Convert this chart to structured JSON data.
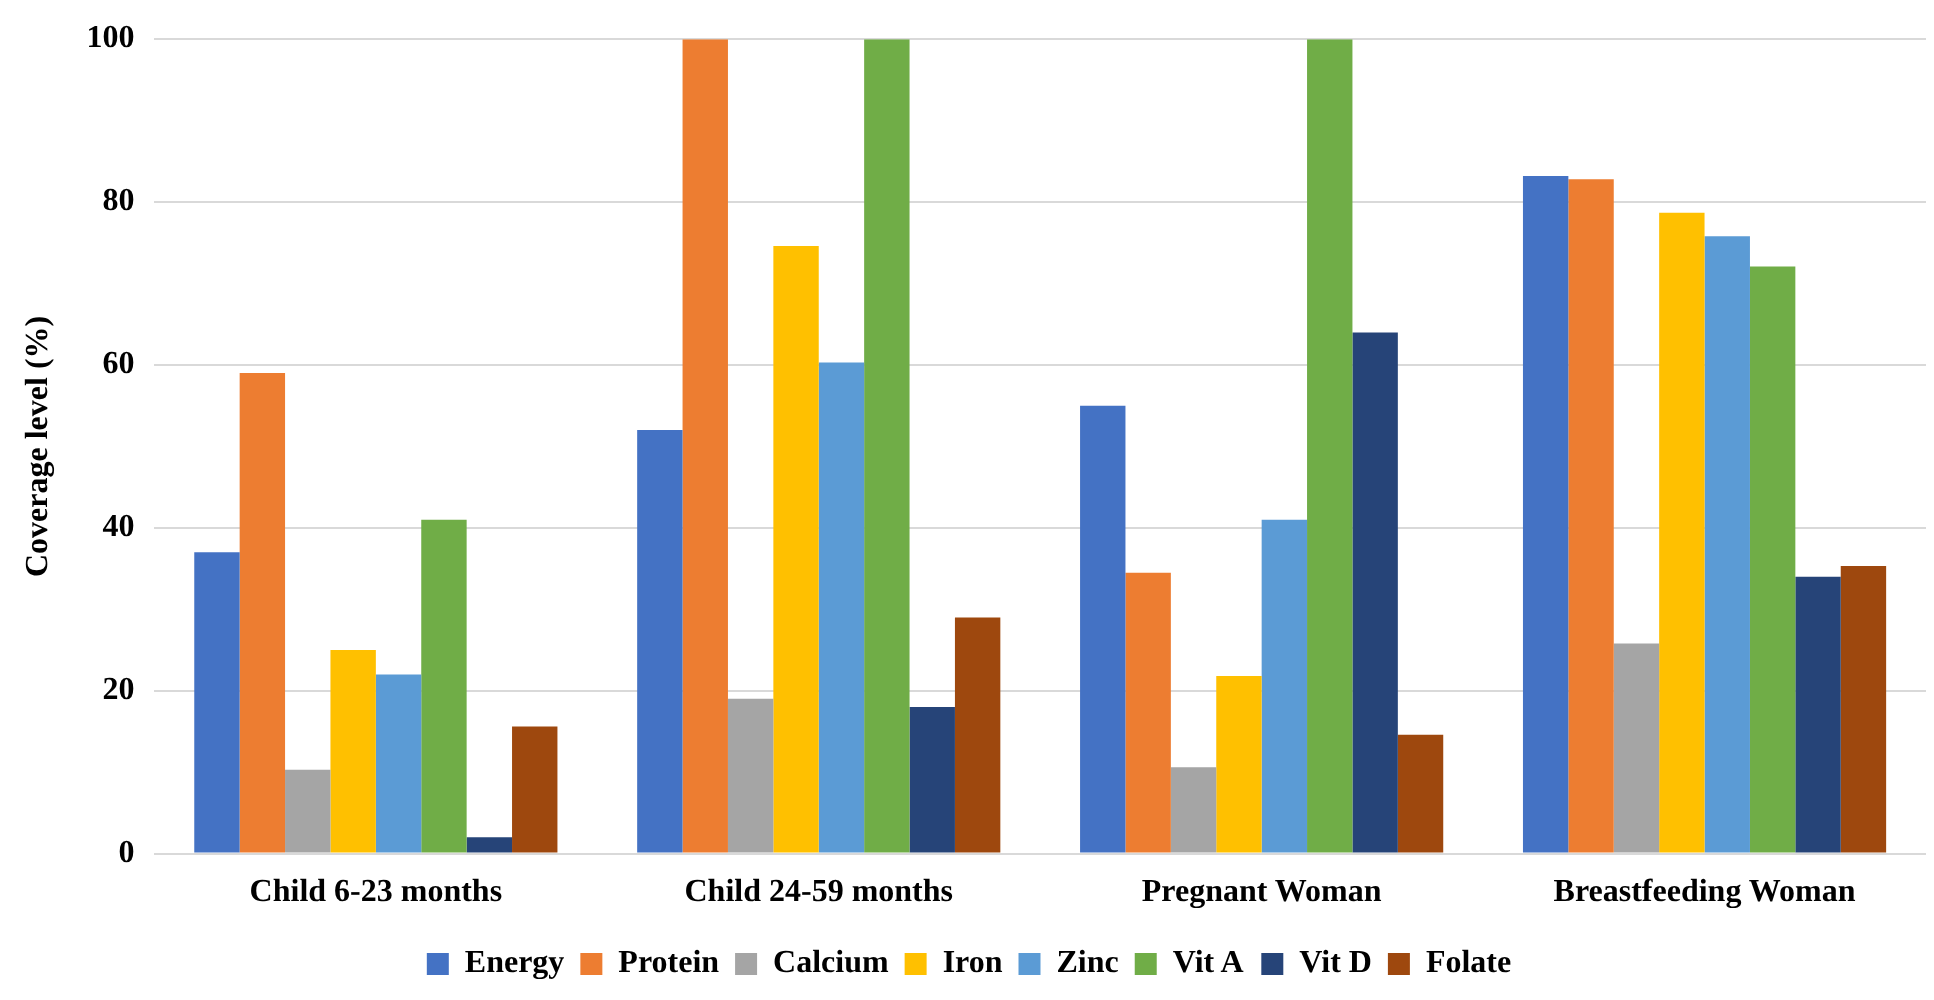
{
  "chart_data": {
    "type": "bar",
    "ylabel": "Coverage level (%)",
    "categories": [
      "Child 6-23 months",
      "Child 24-59 months",
      "Pregnant Woman",
      "Breastfeeding Woman"
    ],
    "series": [
      {
        "name": "Energy",
        "color": "#4472c4",
        "values": [
          37,
          52,
          55,
          83.2
        ]
      },
      {
        "name": "Protein",
        "color": "#ed7d31",
        "values": [
          59,
          100,
          34.5,
          82.8
        ]
      },
      {
        "name": "Calcium",
        "color": "#a5a5a5",
        "values": [
          10.3,
          19,
          10.6,
          25.8
        ]
      },
      {
        "name": "Iron",
        "color": "#ffc000",
        "values": [
          25,
          74.6,
          21.8,
          78.7
        ]
      },
      {
        "name": "Zinc",
        "color": "#5b9bd5",
        "values": [
          22,
          60.3,
          41,
          75.8
        ]
      },
      {
        "name": "Vit A",
        "color": "#70ad47",
        "values": [
          41,
          100,
          100,
          72.1
        ]
      },
      {
        "name": "Vit D",
        "color": "#264478",
        "values": [
          2,
          18,
          64,
          34
        ]
      },
      {
        "name": "Folate",
        "color": "#9e480e",
        "values": [
          15.6,
          29,
          14.6,
          35.3
        ]
      }
    ],
    "ylim": [
      0,
      100
    ],
    "yticks": [
      0,
      20,
      40,
      60,
      80,
      100
    ],
    "grid": "y",
    "legend": "bottom"
  }
}
